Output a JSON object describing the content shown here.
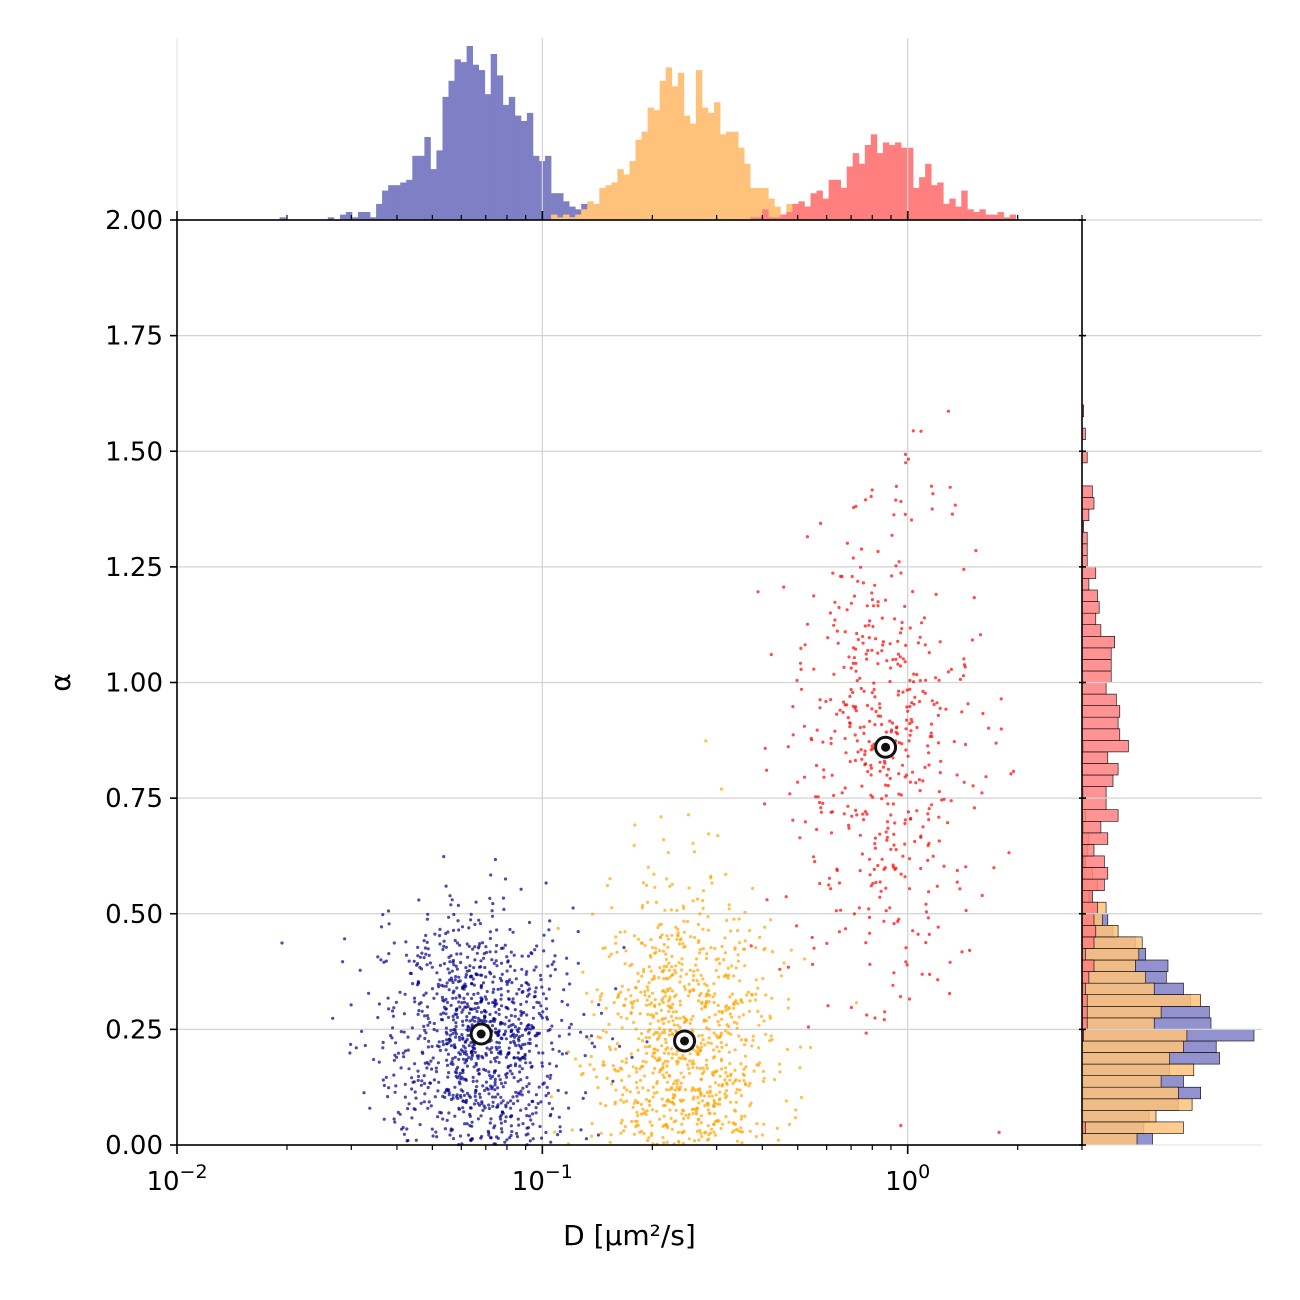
{
  "chart_data": {
    "type": "scatter",
    "xlabel": "D [μm²/s]",
    "ylabel": "α",
    "xscale": "log",
    "xlim": [
      0.01,
      3.0
    ],
    "ylim": [
      0,
      2
    ],
    "x_ticks": [
      {
        "value": 0.01,
        "base": "10",
        "exp": "−2"
      },
      {
        "value": 0.1,
        "base": "10",
        "exp": "−1"
      },
      {
        "value": 1,
        "base": "10",
        "exp": "0"
      }
    ],
    "y_ticks": [
      "0.00",
      "0.25",
      "0.50",
      "0.75",
      "1.00",
      "1.25",
      "1.50",
      "1.75",
      "2.00"
    ],
    "grid": true,
    "marginal_histograms": [
      "top",
      "right"
    ],
    "series": [
      {
        "color": "#00008B",
        "hist_color": "#7F7FC5",
        "center": {
          "x": 0.068,
          "y": 0.24
        },
        "spread": {
          "log_x_sd": 0.13,
          "y_sd": 0.14,
          "y_min": 0.0,
          "y_max": 1.0
        },
        "n_points": 1100
      },
      {
        "color": "#FFA500",
        "hist_color": "#FFC27A",
        "center": {
          "x": 0.245,
          "y": 0.225
        },
        "spread": {
          "log_x_sd": 0.12,
          "y_sd": 0.17,
          "y_min": 0.0,
          "y_max": 1.12
        },
        "n_points": 950
      },
      {
        "color": "#FF0000",
        "hist_color": "#FF7F7F",
        "center": {
          "x": 0.87,
          "y": 0.86
        },
        "spread": {
          "log_x_sd": 0.13,
          "y_sd": 0.27,
          "y_min": 0.0,
          "y_max": 1.59
        },
        "n_points": 520
      }
    ]
  }
}
